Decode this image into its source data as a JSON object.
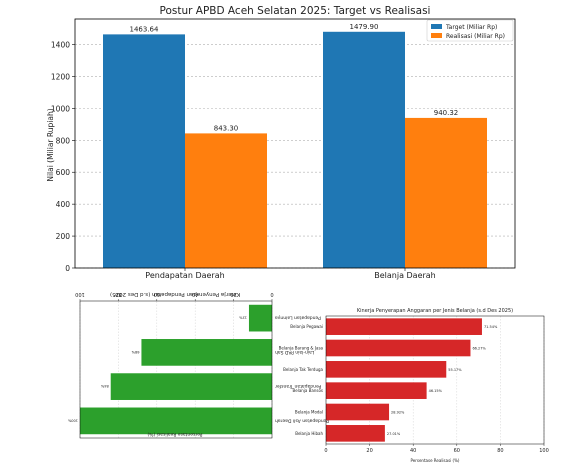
{
  "chart_data": [
    {
      "type": "bar",
      "title": "Postur APBD Aceh Selatan 2025: Target vs Realisasi",
      "xlabel": "",
      "ylabel": "Nilai (Miliar Rupiah)",
      "categories": [
        "Pendapatan Daerah",
        "Belanja Daerah"
      ],
      "series": [
        {
          "name": "Target (Miliar Rp)",
          "values": [
            1463.64,
            1479.9
          ],
          "labels": [
            "1463.64",
            "1479.90"
          ],
          "color": "#1f77b4"
        },
        {
          "name": "Realisasi (Miliar Rp)",
          "values": [
            843.3,
            940.32
          ],
          "labels": [
            "843.30",
            "940.32"
          ],
          "color": "#ff7f0e"
        }
      ],
      "ylim": [
        0,
        1560
      ],
      "yticks": [
        0,
        200,
        400,
        600,
        800,
        1000,
        1200,
        1400
      ],
      "grid": "y",
      "legend": "top-right"
    },
    {
      "type": "bar",
      "orientation": "horizontal",
      "rotated_180": true,
      "title": "Kinerja Penyerapan Pendapatan (s.d Des 2025)",
      "xlabel": "Persentase Realisasi (%)",
      "categories": [
        "Pendapatan Asli Daerah",
        "Pendapatan Transfer",
        "Lain-lain PAD Sah",
        "Pendapatan Lainnya"
      ],
      "values": [
        100,
        84,
        68,
        12
      ],
      "value_labels": [
        "100%",
        "84%",
        "68%",
        "12%"
      ],
      "xlim": [
        0,
        100
      ],
      "xticks": [
        0,
        20,
        40,
        60,
        80,
        100
      ],
      "color": "#2ca02c"
    },
    {
      "type": "bar",
      "orientation": "horizontal",
      "title": "Kinerja Penyerapan Anggaran per Jenis Belanja (s.d Des 2025)",
      "xlabel": "Persentase Realisasi (%)",
      "categories": [
        "Belanja Pegawai",
        "Belanja Barang & Jasa",
        "Belanja Tak Terduga",
        "Belanja Bansos",
        "Belanja Modal",
        "Belanja Hibah"
      ],
      "values": [
        71.54,
        66.27,
        55.17,
        46.15,
        28.92,
        27.01
      ],
      "value_labels": [
        "71.54%",
        "66.27%",
        "55.17%",
        "46.15%",
        "28.92%",
        "27.01%"
      ],
      "xlim": [
        0,
        100
      ],
      "xticks": [
        0,
        20,
        40,
        60,
        80,
        100
      ],
      "color": "#d62728"
    }
  ]
}
